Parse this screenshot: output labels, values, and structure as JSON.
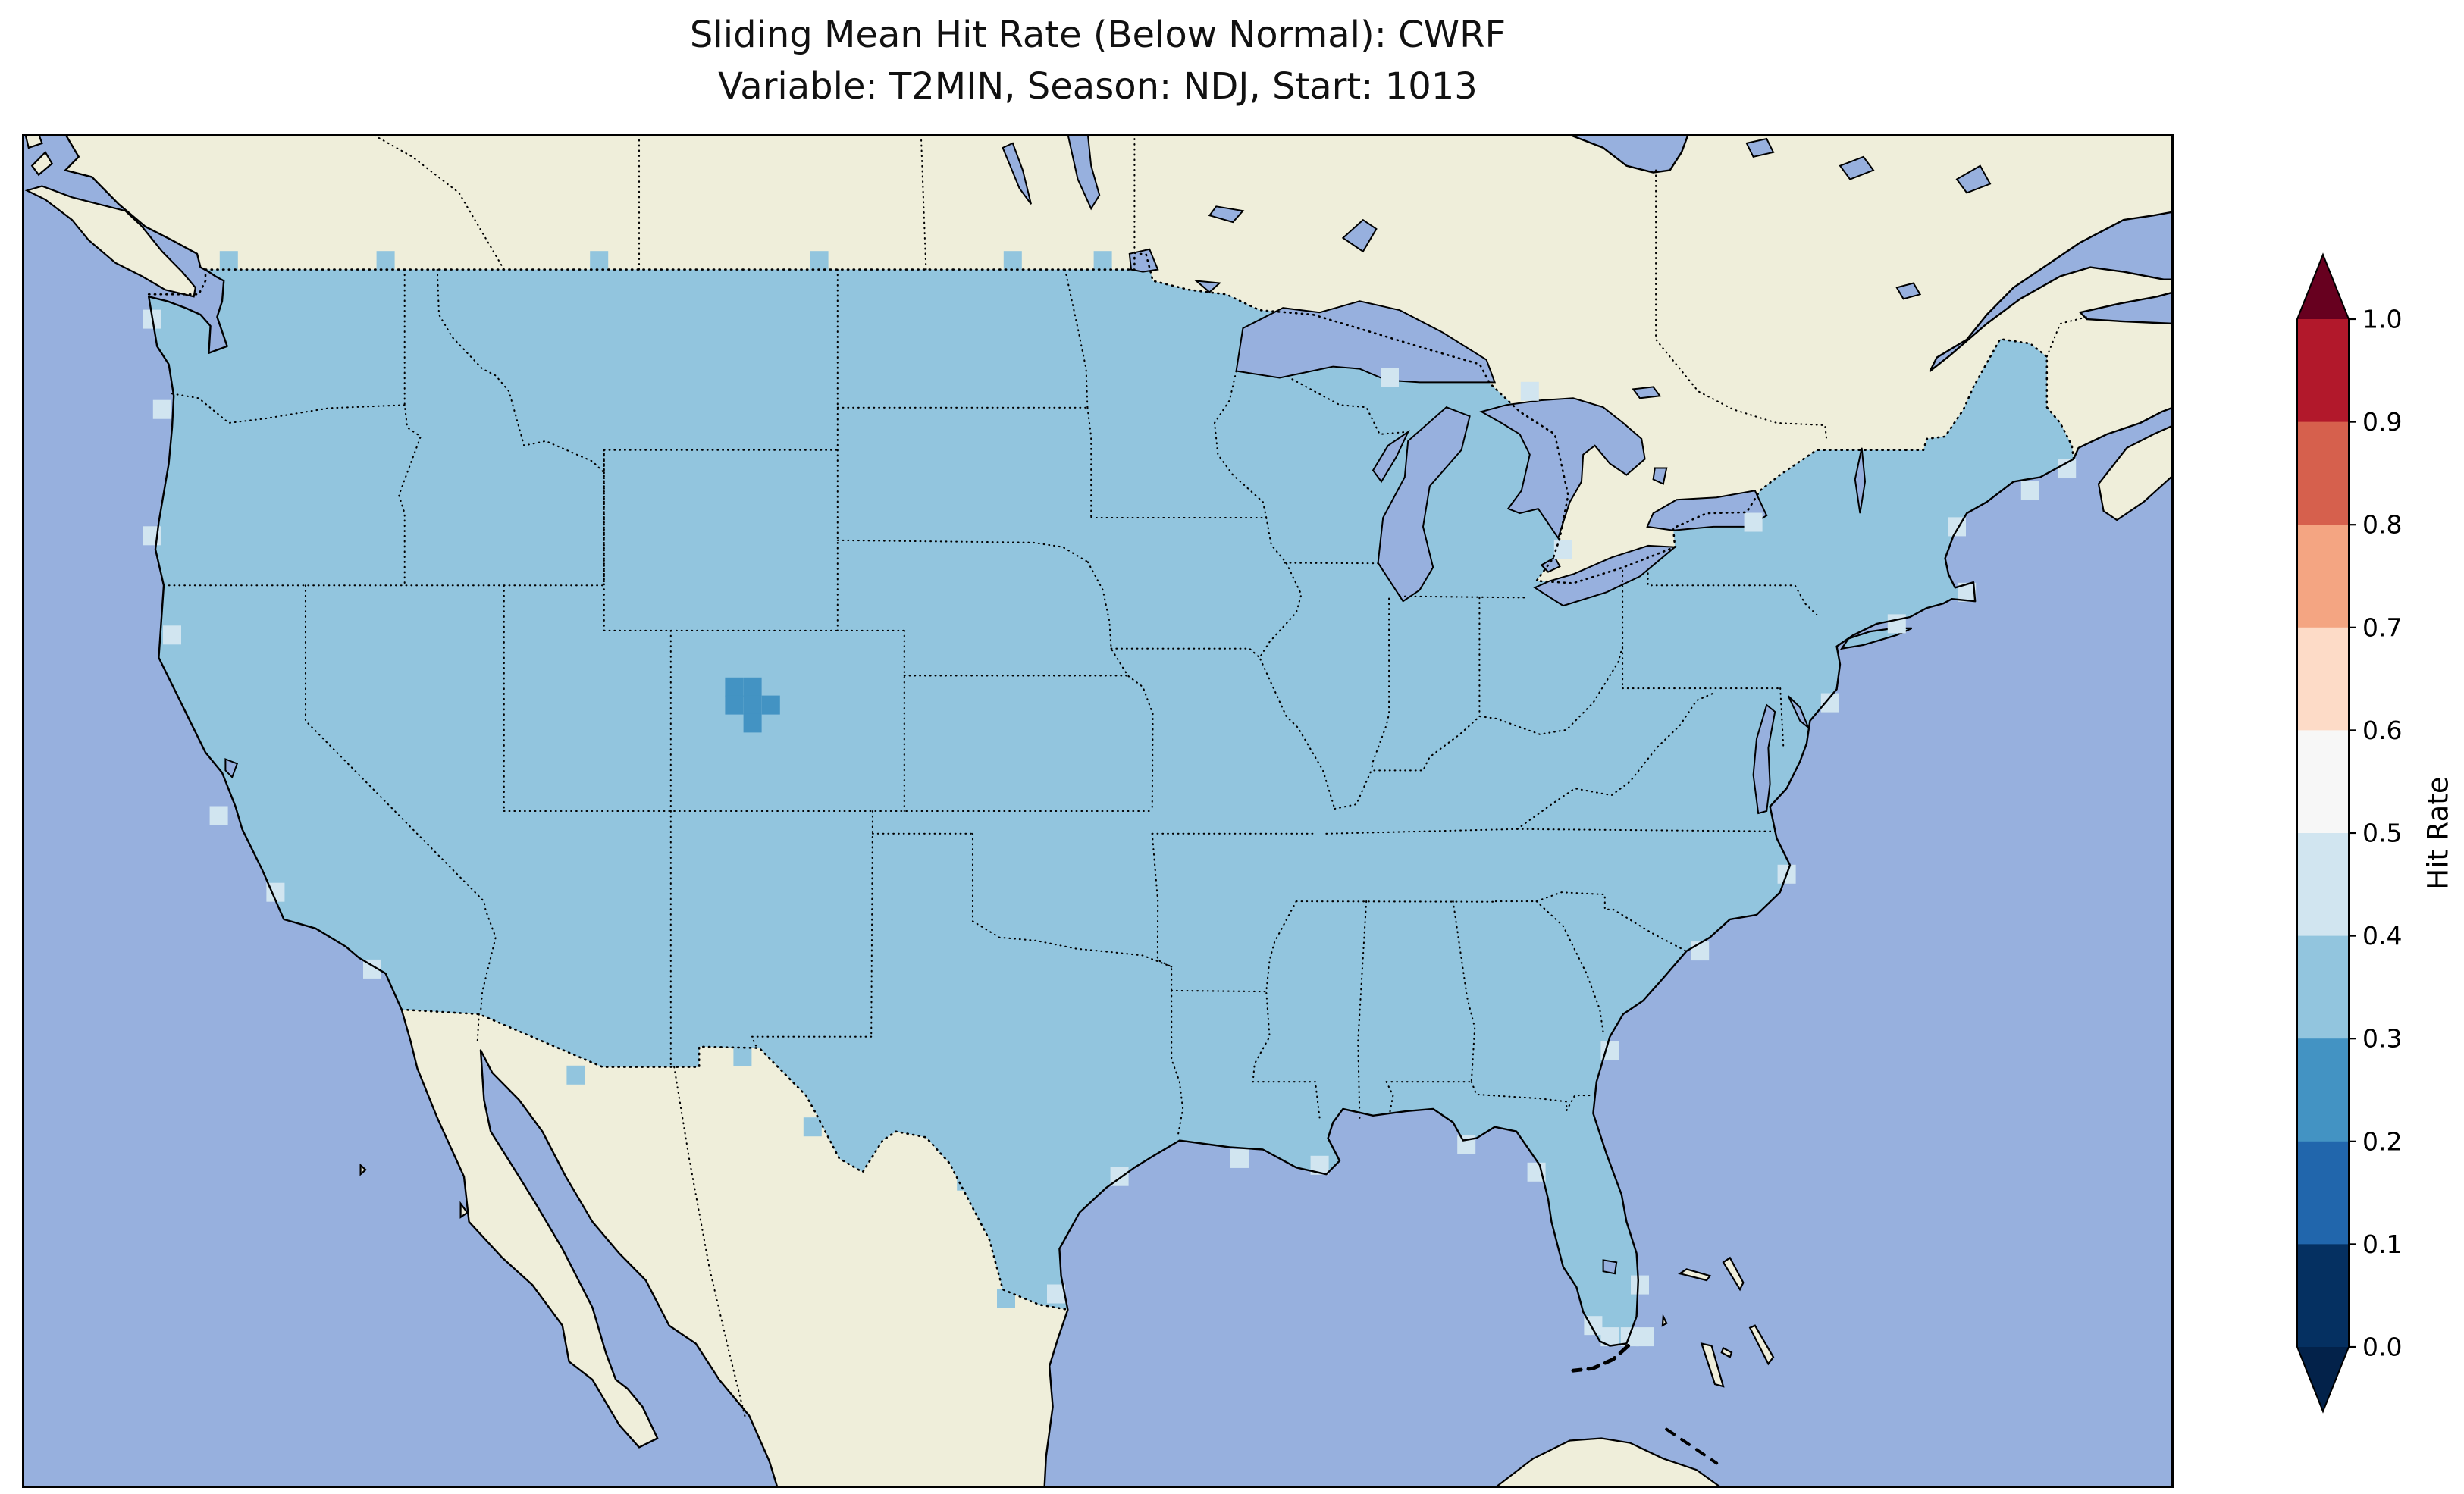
{
  "figure": {
    "title_line1": "Sliding Mean Hit Rate (Below Normal): CWRF",
    "title_line2": "Variable: T2MIN, Season: NDJ, Start: 1013"
  },
  "colors": {
    "background": "#ffffff",
    "ocean": "#97b0de",
    "land": "#efeeda",
    "us_fill": "#92c5de",
    "cell_light": "#d1e5f0",
    "cell_dark": "#4393c3",
    "coastline": "#000000",
    "border_dotted": "#000000",
    "frame": "#000000",
    "title_text": "#111111"
  },
  "colorbar": {
    "label": "Hit Rate",
    "tick_labels": [
      "1.0",
      "0.9",
      "0.8",
      "0.7",
      "0.6",
      "0.5",
      "0.4",
      "0.3",
      "0.2",
      "0.1",
      "0.0"
    ],
    "band_colors_top_to_bottom": [
      "#b2182b",
      "#d6604d",
      "#f4a582",
      "#fddbc7",
      "#f7f7f7",
      "#d1e5f0",
      "#92c5de",
      "#4393c3",
      "#2166ac",
      "#053061"
    ],
    "over_arrow_color": "#67001f",
    "under_arrow_color": "#03224a"
  },
  "chart_data": {
    "type": "heatmap",
    "title": "Sliding Mean Hit Rate (Below Normal): CWRF",
    "subtitle": "Variable: T2MIN, Season: NDJ, Start: 1013",
    "model": "CWRF",
    "variable": "T2MIN",
    "season": "NDJ",
    "start": "1013",
    "metric": "Hit Rate (Below Normal)",
    "region": "Contiguous United States",
    "colorbar_label": "Hit Rate",
    "colorbar_ticks": [
      0.0,
      0.1,
      0.2,
      0.3,
      0.4,
      0.5,
      0.6,
      0.7,
      0.8,
      0.9,
      1.0
    ],
    "colorbar_range": [
      0.0,
      1.0
    ],
    "colormap": "RdBu_r discrete (0.1 bins, extended both ends)",
    "legend_position": "right vertical colorbar",
    "values_summary": [
      {
        "area": "most of contiguous United States",
        "hit_rate_bin": "0.3-0.4"
      },
      {
        "area": "small cluster in central Colorado",
        "hit_rate_bin": "0.2-0.3"
      },
      {
        "area": "scattered coastal edge cells",
        "hit_rate_bin": "0.4-0.5"
      }
    ]
  }
}
